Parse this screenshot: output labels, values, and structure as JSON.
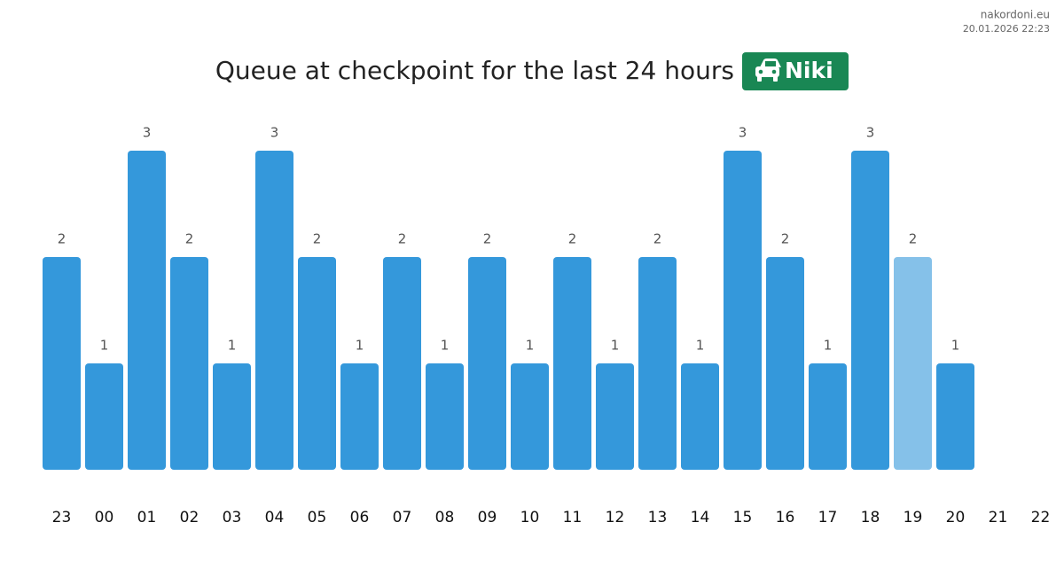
{
  "source": "nakordoni.eu",
  "timestamp": "20.01.2026 22:23",
  "chart_data": {
    "type": "bar",
    "title": "Queue at checkpoint for the last 24 hours",
    "badge": "Niki",
    "categories": [
      "23",
      "00",
      "01",
      "02",
      "03",
      "04",
      "05",
      "06",
      "07",
      "08",
      "09",
      "10",
      "11",
      "12",
      "13",
      "14",
      "15",
      "16",
      "17",
      "18",
      "19",
      "20",
      "21",
      "22"
    ],
    "values": [
      2,
      1,
      3,
      2,
      1,
      3,
      2,
      1,
      2,
      1,
      2,
      1,
      2,
      1,
      2,
      1,
      3,
      2,
      1,
      3,
      2,
      1,
      null,
      null
    ],
    "colors": [
      "#3498db",
      "#3498db",
      "#3498db",
      "#3498db",
      "#3498db",
      "#3498db",
      "#3498db",
      "#3498db",
      "#3498db",
      "#3498db",
      "#3498db",
      "#3498db",
      "#3498db",
      "#3498db",
      "#3498db",
      "#3498db",
      "#3498db",
      "#3498db",
      "#3498db",
      "#3498db",
      "#85c1e9",
      "#3498db",
      null,
      null
    ]
  }
}
